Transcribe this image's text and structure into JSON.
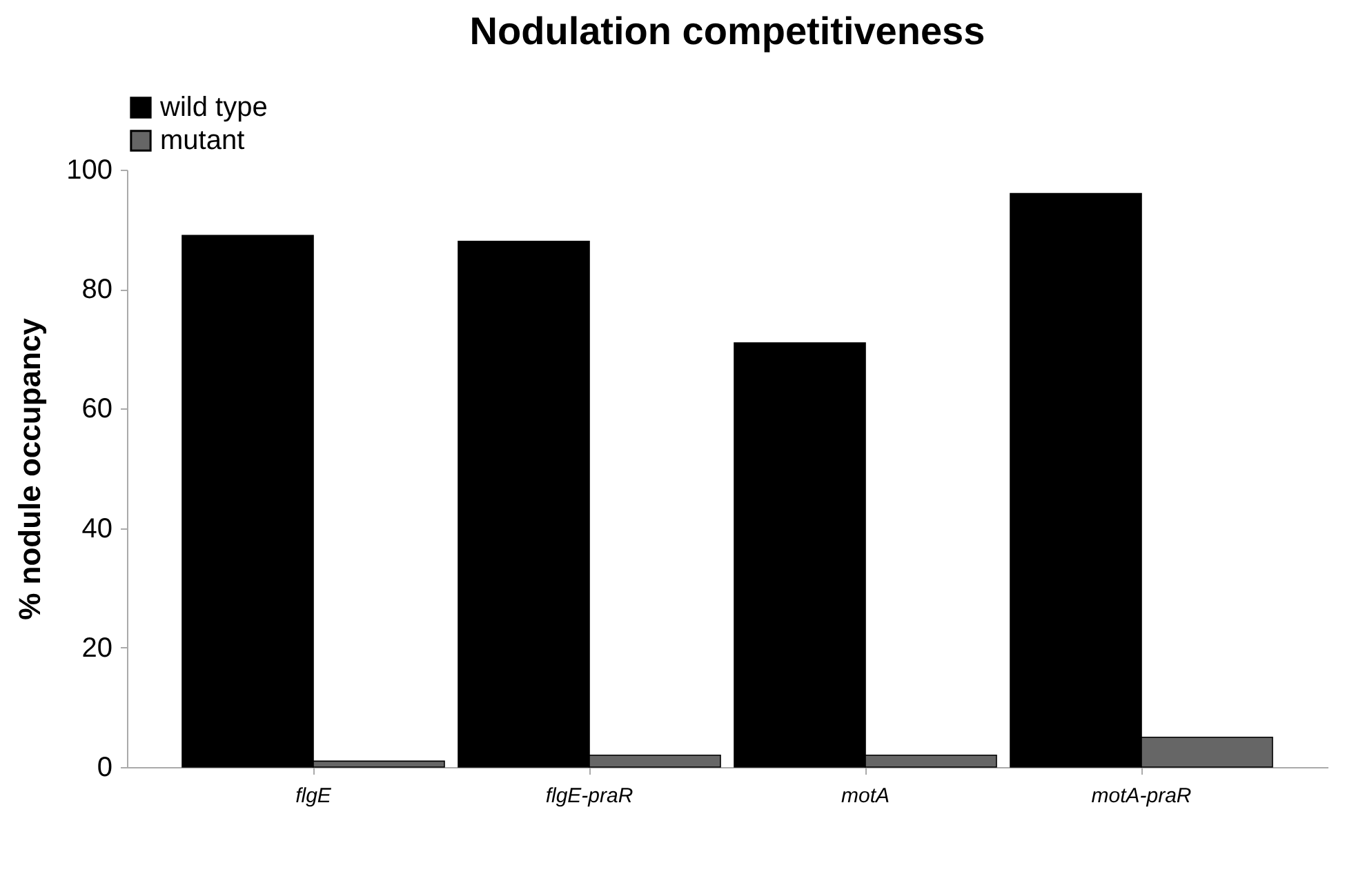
{
  "chart_data": {
    "type": "bar",
    "title": "Nodulation competitiveness",
    "ylabel": "% nodule occupancy",
    "categories": [
      "flgE",
      "flgE-praR",
      "motA",
      "motA-praR"
    ],
    "series": [
      {
        "name": "wild type",
        "color": "#000000",
        "values": [
          89,
          88,
          71,
          96
        ]
      },
      {
        "name": "mutant",
        "color": "#666666",
        "values": [
          1,
          2,
          2,
          5
        ]
      }
    ],
    "ylim": [
      0,
      100
    ],
    "yticks": [
      0,
      20,
      40,
      60,
      80,
      100
    ],
    "grid": false,
    "legend": "top"
  }
}
